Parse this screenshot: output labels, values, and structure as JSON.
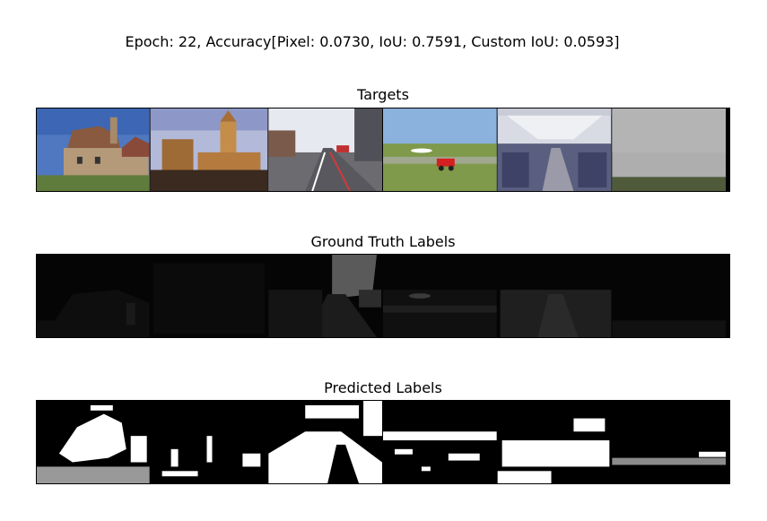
{
  "figure": {
    "suptitle": "Epoch: 22, Accuracy[Pixel: 0.0730, IoU: 0.7591, Custom IoU: 0.0593]"
  },
  "panels": [
    {
      "title": "Targets",
      "kind": "photo-strip",
      "scenes": [
        "brick-house",
        "church-tower",
        "city-street",
        "airfield-tractor",
        "airplane-cabin",
        "foggy-field"
      ]
    },
    {
      "title": "Ground Truth Labels",
      "kind": "label-mask-strip",
      "scenes": [
        "brick-house",
        "church-tower",
        "city-street",
        "airfield-tractor",
        "airplane-cabin",
        "foggy-field"
      ]
    },
    {
      "title": "Predicted Labels",
      "kind": "binary-mask-strip",
      "scenes": [
        "brick-house",
        "church-tower",
        "city-street",
        "airfield-tractor",
        "airplane-cabin",
        "foggy-field"
      ]
    }
  ]
}
